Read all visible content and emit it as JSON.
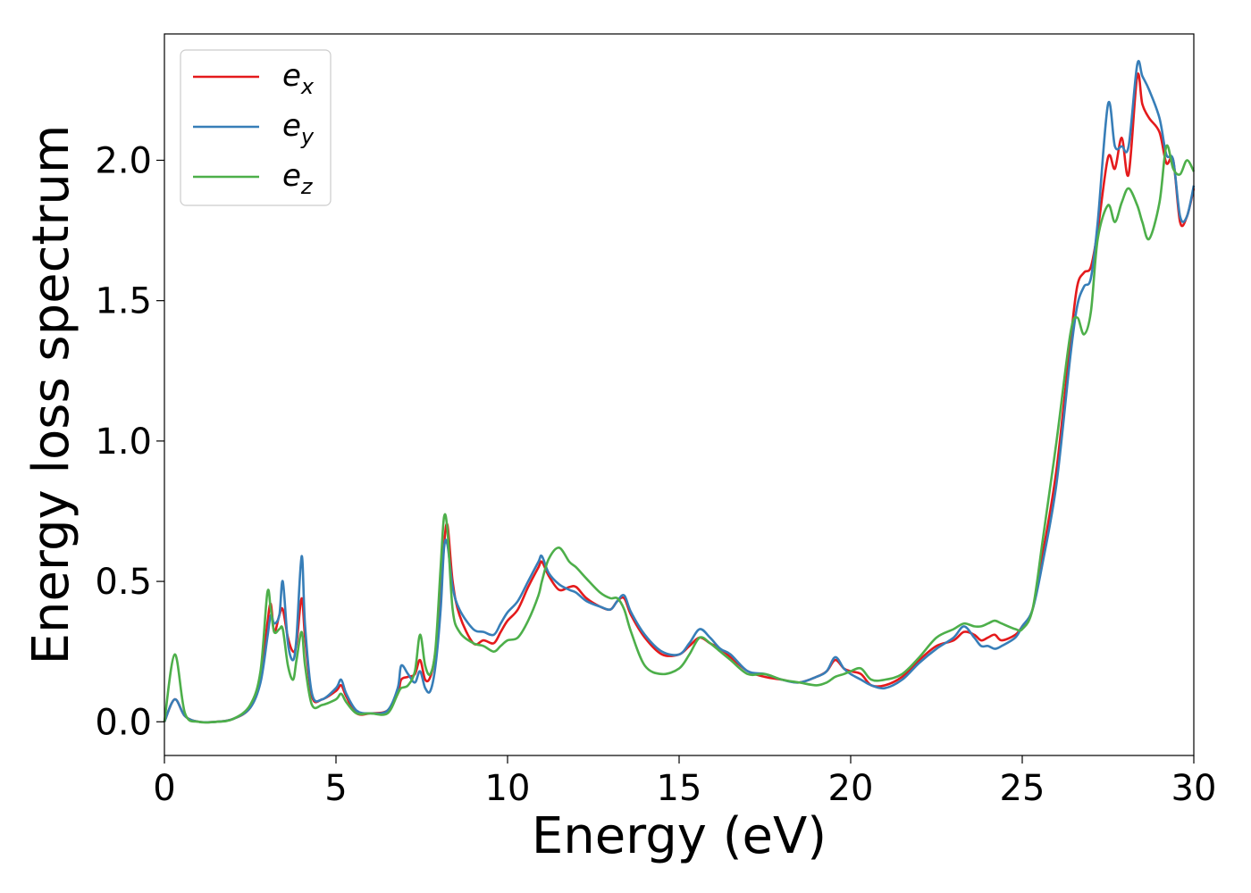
{
  "chart_data": {
    "type": "line",
    "xlabel": "Energy (eV)",
    "ylabel": "Energy loss spectrum",
    "xlim": [
      0,
      30
    ],
    "ylim": [
      -0.12,
      2.45
    ],
    "xticks": [
      0,
      5,
      10,
      15,
      20,
      25,
      30
    ],
    "xtick_labels": [
      "0",
      "5",
      "10",
      "15",
      "20",
      "25",
      "30"
    ],
    "yticks": [
      0.0,
      0.5,
      1.0,
      1.5,
      2.0
    ],
    "ytick_labels": [
      "0.0",
      "0.5",
      "1.0",
      "1.5",
      "2.0"
    ],
    "grid": false,
    "legend_position": "top-left",
    "series": [
      {
        "name": "e_x",
        "legend_base": "e",
        "legend_sub": "x",
        "color": "#e41a1c",
        "x": [
          0,
          0.3,
          0.6,
          1.0,
          1.5,
          2.0,
          2.5,
          2.8,
          3.0,
          3.1,
          3.2,
          3.35,
          3.45,
          3.6,
          3.75,
          3.85,
          4.0,
          4.1,
          4.3,
          4.6,
          5.0,
          5.15,
          5.3,
          5.6,
          6.0,
          6.5,
          6.8,
          6.9,
          7.1,
          7.3,
          7.45,
          7.6,
          7.75,
          7.9,
          8.05,
          8.15,
          8.25,
          8.4,
          8.6,
          9.0,
          9.3,
          9.6,
          9.8,
          10.0,
          10.3,
          10.6,
          10.9,
          11.0,
          11.2,
          11.5,
          11.8,
          12.0,
          12.3,
          12.7,
          13.0,
          13.2,
          13.4,
          13.6,
          14.0,
          14.5,
          15.0,
          15.3,
          15.6,
          15.9,
          16.2,
          16.5,
          17.0,
          17.5,
          18.0,
          18.5,
          19.0,
          19.3,
          19.55,
          19.8,
          20.0,
          20.3,
          20.6,
          21.0,
          21.5,
          22.0,
          22.5,
          23.0,
          23.3,
          23.6,
          23.8,
          24.0,
          24.2,
          24.4,
          24.8,
          25.0,
          25.3,
          25.6,
          26.0,
          26.4,
          26.6,
          26.8,
          27.0,
          27.2,
          27.5,
          27.7,
          27.9,
          28.1,
          28.35,
          28.5,
          28.7,
          29.0,
          29.2,
          29.4,
          29.6,
          29.8,
          30.0
        ],
        "y": [
          0.0,
          0.08,
          0.02,
          0.0,
          0.0,
          0.01,
          0.05,
          0.15,
          0.35,
          0.42,
          0.32,
          0.38,
          0.4,
          0.3,
          0.25,
          0.28,
          0.44,
          0.3,
          0.09,
          0.08,
          0.11,
          0.13,
          0.09,
          0.03,
          0.03,
          0.04,
          0.1,
          0.15,
          0.16,
          0.17,
          0.22,
          0.15,
          0.16,
          0.25,
          0.45,
          0.63,
          0.7,
          0.5,
          0.38,
          0.28,
          0.29,
          0.28,
          0.32,
          0.36,
          0.4,
          0.48,
          0.55,
          0.57,
          0.52,
          0.47,
          0.48,
          0.48,
          0.44,
          0.41,
          0.4,
          0.43,
          0.44,
          0.38,
          0.3,
          0.24,
          0.24,
          0.27,
          0.3,
          0.28,
          0.26,
          0.23,
          0.18,
          0.16,
          0.15,
          0.14,
          0.16,
          0.18,
          0.22,
          0.19,
          0.18,
          0.17,
          0.13,
          0.13,
          0.16,
          0.22,
          0.27,
          0.29,
          0.32,
          0.31,
          0.29,
          0.3,
          0.31,
          0.29,
          0.31,
          0.34,
          0.4,
          0.6,
          0.9,
          1.35,
          1.55,
          1.6,
          1.62,
          1.75,
          2.01,
          1.97,
          2.08,
          1.95,
          2.3,
          2.2,
          2.15,
          2.1,
          1.99,
          2.0,
          1.78,
          1.8,
          1.9
        ]
      },
      {
        "name": "e_y",
        "legend_base": "e",
        "legend_sub": "y",
        "color": "#377eb8",
        "x": [
          0,
          0.3,
          0.6,
          1.0,
          1.5,
          2.0,
          2.5,
          2.8,
          3.0,
          3.1,
          3.2,
          3.35,
          3.45,
          3.6,
          3.75,
          3.85,
          4.0,
          4.1,
          4.3,
          4.6,
          5.0,
          5.15,
          5.3,
          5.6,
          6.0,
          6.5,
          6.8,
          6.9,
          7.1,
          7.3,
          7.45,
          7.6,
          7.75,
          7.9,
          8.05,
          8.15,
          8.25,
          8.4,
          8.6,
          9.0,
          9.3,
          9.6,
          9.8,
          10.0,
          10.3,
          10.6,
          10.9,
          11.0,
          11.2,
          11.5,
          11.8,
          12.0,
          12.3,
          12.7,
          13.0,
          13.2,
          13.4,
          13.6,
          14.0,
          14.5,
          15.0,
          15.3,
          15.6,
          15.9,
          16.2,
          16.5,
          17.0,
          17.5,
          18.0,
          18.5,
          19.0,
          19.3,
          19.55,
          19.8,
          20.0,
          20.3,
          20.6,
          21.0,
          21.5,
          22.0,
          22.5,
          23.0,
          23.3,
          23.6,
          23.8,
          24.0,
          24.2,
          24.4,
          24.8,
          25.0,
          25.3,
          25.6,
          26.0,
          26.4,
          26.6,
          26.8,
          27.0,
          27.2,
          27.5,
          27.7,
          27.9,
          28.1,
          28.35,
          28.5,
          28.7,
          29.0,
          29.2,
          29.4,
          29.6,
          29.8,
          30.0
        ],
        "y": [
          0.0,
          0.08,
          0.02,
          0.0,
          0.0,
          0.01,
          0.05,
          0.14,
          0.3,
          0.38,
          0.35,
          0.38,
          0.5,
          0.28,
          0.22,
          0.3,
          0.59,
          0.34,
          0.1,
          0.08,
          0.12,
          0.15,
          0.1,
          0.04,
          0.03,
          0.04,
          0.12,
          0.2,
          0.17,
          0.14,
          0.18,
          0.12,
          0.11,
          0.2,
          0.4,
          0.62,
          0.63,
          0.48,
          0.4,
          0.33,
          0.32,
          0.31,
          0.35,
          0.39,
          0.43,
          0.5,
          0.57,
          0.59,
          0.53,
          0.49,
          0.47,
          0.46,
          0.43,
          0.41,
          0.4,
          0.43,
          0.45,
          0.39,
          0.31,
          0.25,
          0.24,
          0.28,
          0.33,
          0.3,
          0.26,
          0.24,
          0.18,
          0.17,
          0.15,
          0.14,
          0.16,
          0.18,
          0.23,
          0.19,
          0.17,
          0.15,
          0.13,
          0.12,
          0.15,
          0.21,
          0.26,
          0.3,
          0.34,
          0.3,
          0.27,
          0.27,
          0.26,
          0.27,
          0.3,
          0.34,
          0.4,
          0.57,
          0.85,
          1.3,
          1.48,
          1.55,
          1.58,
          1.78,
          2.2,
          2.05,
          2.05,
          2.05,
          2.34,
          2.3,
          2.25,
          2.15,
          2.02,
          2.0,
          1.8,
          1.8,
          1.91
        ]
      },
      {
        "name": "e_z",
        "legend_base": "e",
        "legend_sub": "z",
        "color": "#4daf4a",
        "x": [
          0,
          0.3,
          0.6,
          1.0,
          1.5,
          2.0,
          2.5,
          2.8,
          3.0,
          3.1,
          3.2,
          3.35,
          3.45,
          3.6,
          3.75,
          3.85,
          4.0,
          4.1,
          4.3,
          4.6,
          5.0,
          5.15,
          5.3,
          5.6,
          6.0,
          6.5,
          6.8,
          6.9,
          7.1,
          7.3,
          7.45,
          7.6,
          7.75,
          7.9,
          8.05,
          8.15,
          8.25,
          8.4,
          8.6,
          9.0,
          9.3,
          9.6,
          9.8,
          10.0,
          10.3,
          10.6,
          10.9,
          11.0,
          11.2,
          11.5,
          11.8,
          12.0,
          12.3,
          12.7,
          13.0,
          13.2,
          13.4,
          13.6,
          14.0,
          14.5,
          15.0,
          15.3,
          15.6,
          15.9,
          16.2,
          16.5,
          17.0,
          17.5,
          18.0,
          18.5,
          19.0,
          19.3,
          19.55,
          19.8,
          20.0,
          20.3,
          20.6,
          21.0,
          21.5,
          22.0,
          22.5,
          23.0,
          23.3,
          23.6,
          23.8,
          24.0,
          24.2,
          24.4,
          24.8,
          25.0,
          25.3,
          25.6,
          26.0,
          26.4,
          26.6,
          26.8,
          27.0,
          27.2,
          27.5,
          27.7,
          27.9,
          28.1,
          28.35,
          28.5,
          28.7,
          29.0,
          29.2,
          29.4,
          29.6,
          29.8,
          30.0
        ],
        "y": [
          0.0,
          0.24,
          0.03,
          0.0,
          0.0,
          0.01,
          0.06,
          0.18,
          0.46,
          0.4,
          0.32,
          0.33,
          0.33,
          0.2,
          0.15,
          0.22,
          0.32,
          0.2,
          0.06,
          0.06,
          0.08,
          0.1,
          0.07,
          0.03,
          0.03,
          0.03,
          0.1,
          0.12,
          0.13,
          0.18,
          0.31,
          0.2,
          0.17,
          0.26,
          0.55,
          0.73,
          0.68,
          0.4,
          0.32,
          0.28,
          0.27,
          0.25,
          0.27,
          0.29,
          0.3,
          0.36,
          0.45,
          0.5,
          0.58,
          0.62,
          0.57,
          0.55,
          0.51,
          0.46,
          0.44,
          0.44,
          0.4,
          0.32,
          0.2,
          0.17,
          0.19,
          0.24,
          0.3,
          0.28,
          0.25,
          0.22,
          0.17,
          0.17,
          0.15,
          0.14,
          0.13,
          0.14,
          0.16,
          0.17,
          0.18,
          0.19,
          0.15,
          0.15,
          0.17,
          0.23,
          0.3,
          0.33,
          0.35,
          0.34,
          0.34,
          0.35,
          0.36,
          0.35,
          0.33,
          0.33,
          0.4,
          0.65,
          1.0,
          1.38,
          1.44,
          1.38,
          1.46,
          1.72,
          1.84,
          1.78,
          1.85,
          1.9,
          1.84,
          1.78,
          1.72,
          1.85,
          2.05,
          1.97,
          1.95,
          2.0,
          1.96
        ]
      }
    ]
  }
}
